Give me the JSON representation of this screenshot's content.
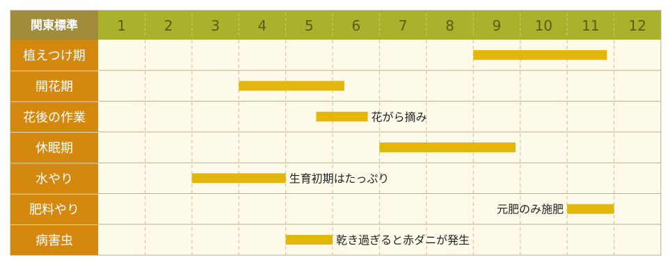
{
  "chart_data": {
    "type": "gantt",
    "corner_label": "関東標準",
    "months": [
      "1",
      "2",
      "3",
      "4",
      "5",
      "6",
      "7",
      "8",
      "9",
      "10",
      "11",
      "12"
    ],
    "rows": [
      {
        "label": "植えつけ期",
        "bars": [
          {
            "start": 9.0,
            "end": 11.85,
            "note": "",
            "note_side": "right"
          }
        ]
      },
      {
        "label": "開花期",
        "bars": [
          {
            "start": 4.0,
            "end": 6.25,
            "note": "",
            "note_side": "right"
          }
        ]
      },
      {
        "label": "花後の作業",
        "bars": [
          {
            "start": 5.65,
            "end": 6.75,
            "note": "花がら摘み",
            "note_side": "right"
          }
        ]
      },
      {
        "label": "休眠期",
        "bars": [
          {
            "start": 7.0,
            "end": 9.9,
            "note": "",
            "note_side": "right"
          }
        ]
      },
      {
        "label": "水やり",
        "bars": [
          {
            "start": 3.0,
            "end": 5.0,
            "note": "生育初期はたっぷり",
            "note_side": "right"
          }
        ]
      },
      {
        "label": "肥料やり",
        "bars": [
          {
            "start": 11.0,
            "end": 12.0,
            "note": "元肥のみ施肥",
            "note_side": "left"
          }
        ]
      },
      {
        "label": "病害虫",
        "bars": [
          {
            "start": 5.0,
            "end": 6.0,
            "note": "乾き過ぎると赤ダニが発生",
            "note_side": "right"
          }
        ]
      }
    ],
    "colors": {
      "header_bg": "#a8b22a",
      "corner_bg": "#a08c3a",
      "row_label_bg": "#d4880e",
      "header_text": "#5e5a1c",
      "grid_bg": "#fdfaea",
      "bar": "#e2b60a",
      "grid_line": "#c9c08a",
      "border": "#b7b08a"
    }
  }
}
